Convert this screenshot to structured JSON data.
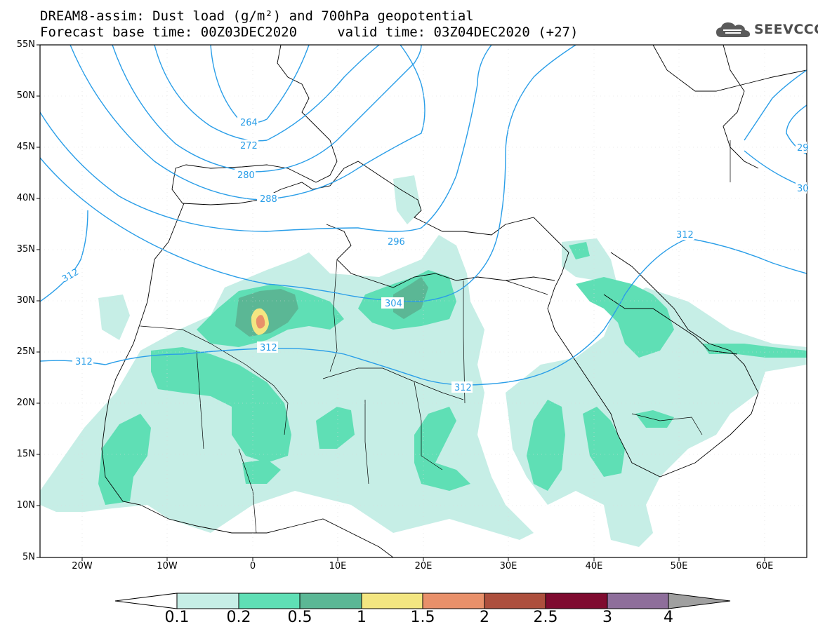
{
  "title": {
    "line1": "DREAM8-assim: Dust load (g/m²) and 700hPa geopotential",
    "line2": "Forecast base time: 00Z03DEC2020     valid time: 03Z04DEC2020 (+27)"
  },
  "logo": {
    "text": "SEEVCCC",
    "icon": "cloud-icon"
  },
  "map": {
    "lat_labels": [
      "55N",
      "50N",
      "45N",
      "40N",
      "35N",
      "30N",
      "25N",
      "20N",
      "15N",
      "10N",
      "5N"
    ],
    "lon_labels": [
      "20W",
      "10W",
      "0",
      "10E",
      "20E",
      "30E",
      "40E",
      "50E",
      "60E"
    ],
    "contour_labels": [
      "264",
      "272",
      "280",
      "288",
      "296",
      "304",
      "312",
      "312",
      "312",
      "312",
      "29",
      "30"
    ]
  },
  "colorbar": {
    "ticks": [
      "0.1",
      "0.2",
      "0.5",
      "1",
      "1.5",
      "2",
      "2.5",
      "3",
      "4"
    ],
    "colors": [
      "#c6eee6",
      "#5fdfb5",
      "#5bb795",
      "#f3e681",
      "#e8906a",
      "#ad4f3d",
      "#7f0b30",
      "#8e6e9b"
    ],
    "under_color": "#ffffff",
    "over_color": "#a0a0a0"
  },
  "styles": {
    "contour_color": "#2a9ee8",
    "coast_color": "#000000"
  }
}
